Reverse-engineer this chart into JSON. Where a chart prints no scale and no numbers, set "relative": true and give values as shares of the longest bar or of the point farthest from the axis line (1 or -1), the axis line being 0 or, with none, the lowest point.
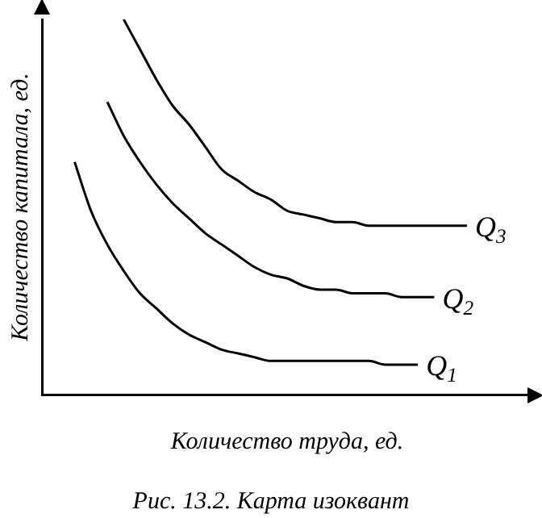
{
  "chart_data": {
    "type": "line",
    "relative": true,
    "xlabel": "Количество труда, ед.",
    "ylabel": "Количество капитала, ед.",
    "annotations": [
      "Рис. 13.2. Карта изоквант"
    ],
    "categories": [
      null,
      null,
      null,
      null,
      null,
      null,
      null,
      null,
      null,
      null,
      null,
      null,
      null,
      null,
      null,
      null,
      null,
      null,
      null,
      null,
      null,
      null,
      null,
      null,
      null,
      null,
      null,
      null,
      null,
      null,
      null
    ],
    "series": [
      {
        "name": "Q$_{1}$",
        "color": "#000000",
        "values": [
          null,
          null,
          0.62,
          0.49,
          0.4,
          0.33,
          0.27,
          0.23,
          0.19,
          0.16,
          0.14,
          0.12,
          0.11,
          0.1,
          0.09,
          0.09,
          0.09,
          0.09,
          0.09,
          0.09,
          0.09,
          0.08,
          0.08,
          0.08,
          null,
          null,
          null,
          null,
          null,
          null,
          null
        ]
      },
      {
        "name": "Q$_{2}$",
        "color": "#000000",
        "values": [
          null,
          null,
          null,
          null,
          0.78,
          0.69,
          0.62,
          0.56,
          0.51,
          0.47,
          0.43,
          0.4,
          0.37,
          0.34,
          0.32,
          0.31,
          0.29,
          0.28,
          0.28,
          0.27,
          0.27,
          0.27,
          0.26,
          0.26,
          0.26,
          null,
          null,
          null,
          null,
          null,
          null
        ]
      },
      {
        "name": "Q$_{3}$",
        "color": "#000000",
        "values": [
          null,
          null,
          null,
          null,
          null,
          1.0,
          0.92,
          0.84,
          0.77,
          0.72,
          0.66,
          0.6,
          0.57,
          0.54,
          0.52,
          0.49,
          0.48,
          0.47,
          0.46,
          0.46,
          0.45,
          0.45,
          0.45,
          0.45,
          0.45,
          0.45,
          0.45,
          null,
          null,
          null,
          null
        ]
      }
    ],
    "grid": false,
    "legend": false,
    "marker": "none",
    "line_style": "solid"
  }
}
